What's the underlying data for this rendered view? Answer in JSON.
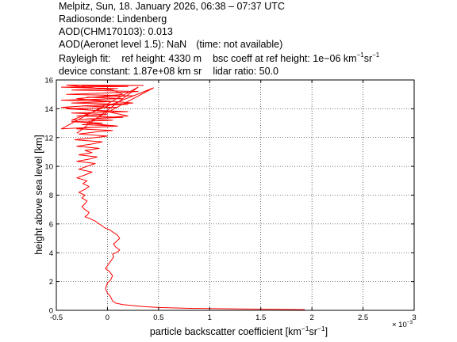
{
  "header": {
    "line1": "Melpitz, Sun, 18. January 2026, 06:38 – 07:37 UTC",
    "line2": "Radiosonde: Lindenberg",
    "line3": "AOD(CHM170103): 0.013",
    "line4_main": "AOD(Aeronet level 1.5): NaN",
    "line4_note": "(time: not available)",
    "rayleigh_label": "Rayleigh fit:",
    "ref_height": "ref height: 4330 m",
    "bsc_coeff_prefix": "bsc coeff at ref height: 1e−06 km",
    "bsc_unit_sup1": "−1",
    "bsc_unit_mid": "sr",
    "bsc_unit_sup2": "−1",
    "device_constant": "device constant: 1.87e+08 km sr",
    "lidar_ratio": "lidar ratio: 50.0"
  },
  "chart_data": {
    "type": "line",
    "xlabel_prefix": "particle backscatter coefficient [km",
    "xlabel_sup1": "−1",
    "xlabel_mid": "sr",
    "xlabel_sup2": "−1",
    "xlabel_suffix": "]",
    "x_multiplier": "× 10",
    "x_multiplier_exp": "−3",
    "ylabel": "height above sea level [km]",
    "xlim": [
      -0.5,
      3
    ],
    "ylim": [
      0,
      16
    ],
    "xticks": [
      "-0.5",
      "0",
      "0.5",
      "1",
      "1.5",
      "2",
      "2.5",
      "3"
    ],
    "yticks": [
      "0",
      "2",
      "4",
      "6",
      "8",
      "10",
      "12",
      "14",
      "16"
    ],
    "xtick_values": [
      -0.5,
      0,
      0.5,
      1,
      1.5,
      2,
      2.5,
      3
    ],
    "ytick_values": [
      0,
      2,
      4,
      6,
      8,
      10,
      12,
      14,
      16
    ],
    "grid": true,
    "line_color": "#ff0000",
    "series": [
      {
        "x": [
          1.93,
          1.7,
          1.3,
          0.8,
          0.5,
          0.35,
          0.25,
          0.15,
          0.08,
          0.05,
          0.04,
          0.03,
          0.02,
          0.0,
          -0.02,
          0.0,
          0.03,
          0.05,
          0.02,
          -0.02,
          0.0,
          0.03,
          0.06,
          0.05,
          0.1,
          0.12,
          0.08,
          0.06,
          0.09,
          0.12,
          0.1,
          0.06,
          0.04,
          0.02,
          -0.02,
          -0.04,
          -0.06,
          -0.08,
          -0.1,
          -0.12,
          -0.15,
          -0.18,
          -0.22,
          -0.2,
          -0.18,
          -0.22,
          -0.25,
          -0.22,
          -0.2,
          -0.25,
          -0.22,
          -0.28,
          -0.22,
          -0.18,
          -0.24,
          -0.2,
          -0.3,
          -0.22,
          -0.15,
          -0.28,
          -0.2,
          -0.12,
          -0.3,
          -0.18,
          -0.1,
          -0.28,
          -0.15,
          -0.22,
          -0.08,
          -0.3,
          -0.15,
          -0.05,
          -0.32,
          -0.12,
          0.0,
          -0.28,
          -0.1,
          0.05,
          -0.3,
          -0.15,
          0.1,
          -0.25,
          -0.05,
          -0.35,
          0.05,
          -0.2,
          0.15,
          -0.3,
          0.0,
          -0.35,
          0.2,
          -0.15,
          -0.4,
          0.1,
          -0.25,
          0.2,
          -0.35,
          0.05,
          -0.45,
          0.15,
          -0.2,
          0.25,
          -0.4,
          0.0,
          0.3,
          -0.35,
          0.1,
          -0.45,
          0.2,
          -0.25,
          0.35,
          -0.4,
          0.05,
          0.15,
          -0.3,
          0.25,
          -0.45,
          0.0,
          0.2,
          -0.35,
          0.45,
          -0.2,
          0.1,
          -0.45,
          0.3,
          -0.3
        ],
        "y": [
          0.05,
          0.07,
          0.1,
          0.14,
          0.2,
          0.26,
          0.33,
          0.4,
          0.5,
          0.65,
          0.8,
          0.95,
          1.05,
          1.2,
          1.5,
          1.9,
          2.1,
          2.4,
          2.7,
          2.9,
          3.1,
          3.4,
          3.7,
          3.9,
          4.05,
          4.2,
          4.4,
          4.6,
          4.8,
          5.0,
          5.2,
          5.4,
          5.5,
          5.6,
          5.7,
          5.8,
          5.9,
          6.0,
          6.1,
          6.2,
          6.3,
          6.4,
          6.5,
          6.6,
          6.8,
          7.0,
          7.2,
          7.4,
          7.6,
          7.8,
          8.0,
          8.2,
          8.4,
          8.6,
          8.8,
          9.0,
          9.2,
          9.4,
          9.6,
          9.8,
          10.0,
          10.2,
          10.35,
          10.5,
          10.65,
          10.8,
          10.95,
          11.1,
          11.25,
          11.4,
          11.55,
          11.7,
          11.85,
          12.0,
          12.1,
          12.25,
          12.4,
          12.5,
          12.6,
          12.7,
          12.8,
          12.9,
          13.0,
          13.1,
          13.2,
          13.3,
          13.4,
          13.5,
          13.6,
          13.7,
          13.8,
          13.9,
          14.0,
          14.1,
          14.2,
          14.3,
          14.4,
          14.5,
          14.6,
          14.7,
          14.8,
          14.9,
          15.0,
          15.1,
          15.2,
          15.3,
          15.4,
          15.5,
          15.55,
          15.6,
          15.62,
          15.65,
          15.3,
          15.0,
          14.7,
          14.4,
          14.1,
          13.8,
          13.5,
          13.2,
          15.45,
          13.0,
          12.8,
          12.6,
          15.5,
          12.3
        ]
      }
    ]
  }
}
